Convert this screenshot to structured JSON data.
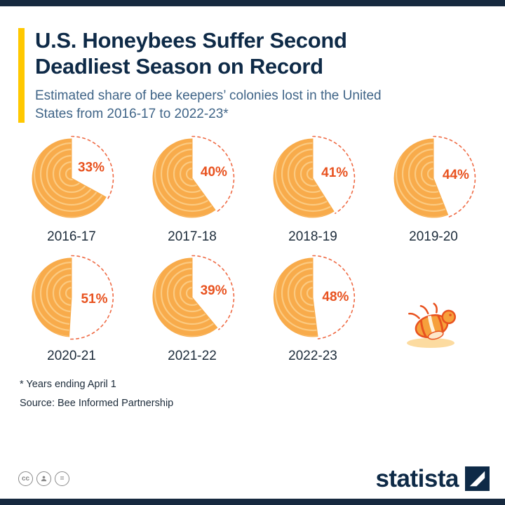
{
  "header": {
    "title_line1": "U.S. Honeybees Suffer Second",
    "title_line2": "Deadliest Season on Record",
    "subtitle_line1": "Estimated share of bee keepers’ colonies lost in the United",
    "subtitle_line2": "States from 2016-17 to 2022-23*"
  },
  "chart_data": {
    "type": "pie",
    "title": "U.S. Honeybees Suffer Second Deadliest Season on Record",
    "subtitle": "Estimated share of bee keepers’ colonies lost in the United States from 2016-17 to 2022-23*",
    "unit": "%",
    "categories": [
      "2016-17",
      "2017-18",
      "2018-19",
      "2019-20",
      "2020-21",
      "2021-22",
      "2022-23"
    ],
    "values": [
      33,
      40,
      41,
      44,
      51,
      39,
      48
    ],
    "layout": "7 honeycomb-style pies in a 4x2 grid; lost share is a white wedge with dashed outline starting at 12 o'clock, remainder is orange hive ball",
    "colors": {
      "pie_fill": "#f8ab4b",
      "pie_ring": "#fbca81",
      "loss_label": "#e8521f",
      "dashed_outline": "#ef6a44",
      "accent_yellow": "#ffc800",
      "navy": "#0e2a47"
    }
  },
  "footer": {
    "footnote": "* Years ending April 1",
    "source": "Source: Bee Informed Partnership",
    "brand": "statista",
    "license_cc": "cc",
    "license_nd": "="
  }
}
